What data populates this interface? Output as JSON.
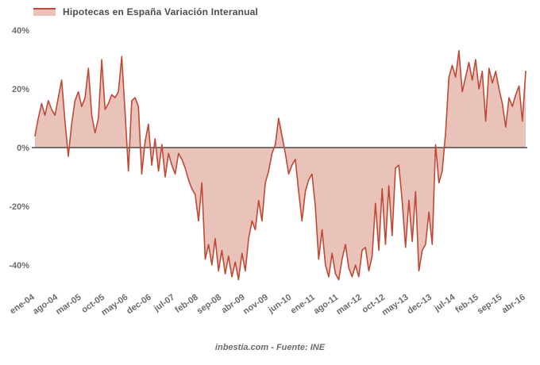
{
  "legend": {
    "label": "Hipotecas en España Variación Interanual"
  },
  "footer": {
    "text": "inbestia.com - Fuente: INE"
  },
  "colors": {
    "line": "#bf4936",
    "fill": "#e9c3b9",
    "zero_axis": "#4a4a4a",
    "tick_text": "#6b6b6b",
    "title_text": "#4d4d4d"
  },
  "chart_data": {
    "type": "area",
    "title": "Hipotecas en España Variación Interanual",
    "legend_position": "top-left",
    "grid": false,
    "baseline": 0,
    "unit": "%",
    "frequency": "monthly",
    "x_start": "ene-04",
    "x_end": "abr-16",
    "x_tick_every": 7,
    "x_tick_labels": [
      "ene-04",
      "ago-04",
      "mar-05",
      "oct-05",
      "may-06",
      "dec-06",
      "jul-07",
      "feb-08",
      "sep-08",
      "abr-09",
      "nov-09",
      "jun-10",
      "ene-11",
      "ago-11",
      "mar-12",
      "oct-12",
      "may-13",
      "dec-13",
      "jul-14",
      "feb-15",
      "sep-15",
      "abr-16"
    ],
    "y_tick_labels": [
      "40%",
      "20%",
      "0%",
      "-20%",
      "-40%"
    ],
    "y_tick_values": [
      40,
      20,
      0,
      -20,
      -40
    ],
    "ylim": [
      -47,
      43
    ],
    "values": [
      4,
      10,
      15,
      11,
      16,
      13,
      11,
      17,
      23,
      9,
      -3,
      8,
      16,
      19,
      14,
      17,
      27,
      11,
      5,
      10,
      30,
      13,
      15,
      18,
      17,
      19,
      31,
      12,
      -8,
      16,
      17,
      14,
      -9,
      2,
      8,
      -6,
      3,
      -8,
      1,
      -10,
      -2,
      -6,
      -9,
      -2,
      -4,
      -7,
      -11,
      -14,
      -16,
      -25,
      -12,
      -38,
      -33,
      -40,
      -31,
      -42,
      -35,
      -43,
      -37,
      -44,
      -39,
      -45,
      -36,
      -42,
      -31,
      -25,
      -28,
      -18,
      -25,
      -12,
      -8,
      -2,
      1,
      10,
      4,
      -2,
      -9,
      -6,
      -4,
      -15,
      -25,
      -15,
      -11,
      -9,
      -20,
      -38,
      -28,
      -40,
      -44,
      -36,
      -43,
      -45,
      -38,
      -33,
      -41,
      -44,
      -40,
      -44,
      -35,
      -34,
      -42,
      -37,
      -19,
      -35,
      -14,
      -33,
      -13,
      -30,
      -7,
      -6,
      -18,
      -34,
      -18,
      -32,
      -15,
      -42,
      -35,
      -33,
      -22,
      -33,
      1,
      -12,
      -8,
      5,
      24,
      28,
      24,
      33,
      19,
      24,
      29,
      23,
      30,
      20,
      26,
      9,
      27,
      22,
      26,
      20,
      15,
      7,
      17,
      14,
      18,
      21,
      9,
      26
    ],
    "source": "inbestia.com - Fuente: INE"
  }
}
